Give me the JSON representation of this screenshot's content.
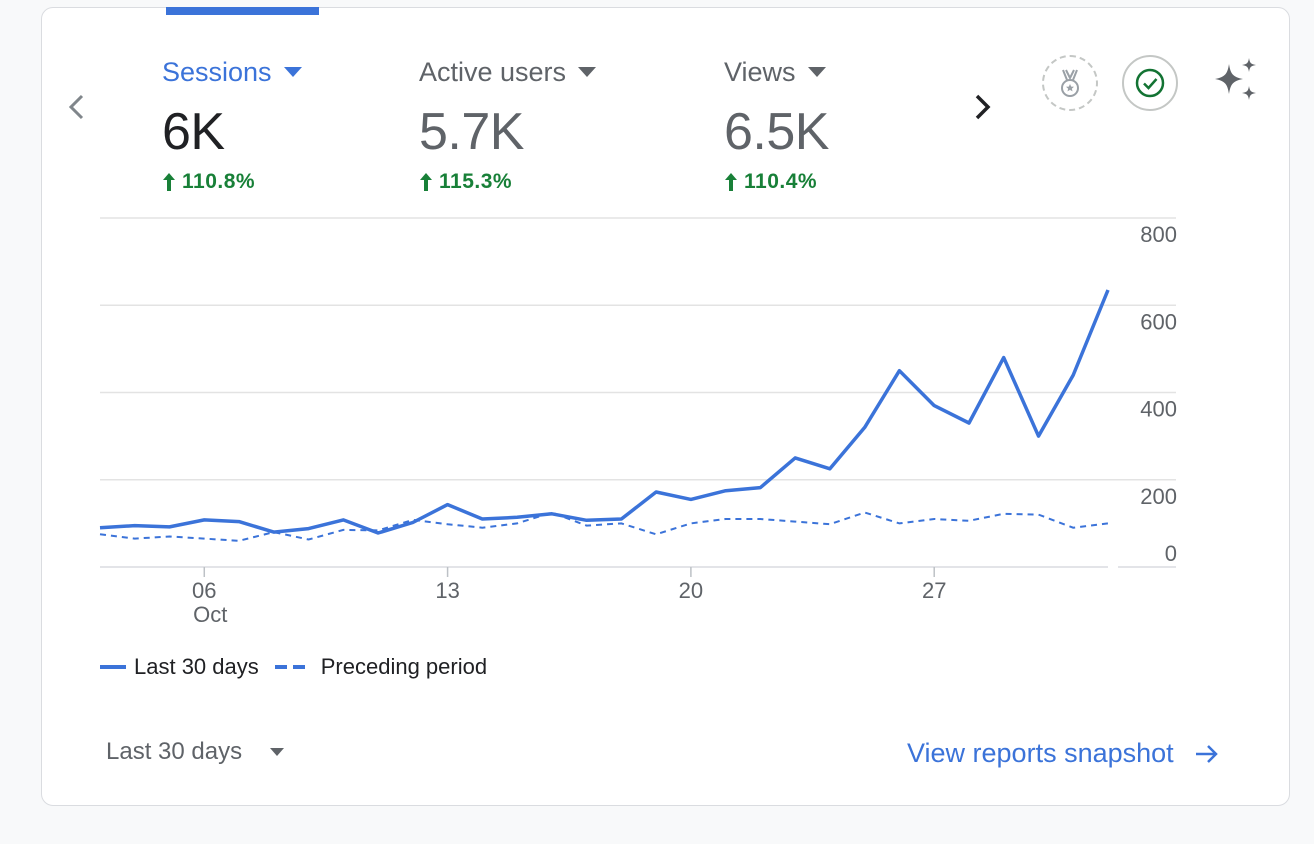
{
  "metrics": [
    {
      "label": "Sessions",
      "value": "6K",
      "change": "110.8%",
      "active": true
    },
    {
      "label": "Active users",
      "value": "5.7K",
      "change": "115.3%",
      "active": false
    },
    {
      "label": "Views",
      "value": "6.5K",
      "change": "110.4%",
      "active": false
    }
  ],
  "icons": {
    "prev": "chevron-left-icon",
    "next": "chevron-right-icon",
    "medal": "medal-icon",
    "check": "check-circle-icon",
    "sparkle": "sparkle-icon",
    "change": "arrow-up-icon",
    "link": "arrow-right-icon"
  },
  "colors": {
    "accent": "#3b73d9",
    "positive": "#188038"
  },
  "chart_data": {
    "type": "line",
    "x": [
      "Oct 3",
      "Oct 4",
      "Oct 5",
      "Oct 6",
      "Oct 7",
      "Oct 8",
      "Oct 9",
      "Oct 10",
      "Oct 11",
      "Oct 12",
      "Oct 13",
      "Oct 14",
      "Oct 15",
      "Oct 16",
      "Oct 17",
      "Oct 18",
      "Oct 19",
      "Oct 20",
      "Oct 21",
      "Oct 22",
      "Oct 23",
      "Oct 24",
      "Oct 25",
      "Oct 26",
      "Oct 27",
      "Oct 28",
      "Oct 29",
      "Oct 30",
      "Oct 31",
      "Nov 1"
    ],
    "x_tick_labels": [
      {
        "index": 3,
        "label": "06",
        "sublabel": "Oct"
      },
      {
        "index": 10,
        "label": "13",
        "sublabel": ""
      },
      {
        "index": 17,
        "label": "20",
        "sublabel": ""
      },
      {
        "index": 24,
        "label": "27",
        "sublabel": ""
      }
    ],
    "ylim": [
      0,
      800
    ],
    "y_ticks": [
      0,
      200,
      400,
      600,
      800
    ],
    "y_axis_side": "right",
    "grid": true,
    "legend_position": "bottom-left",
    "series": [
      {
        "name": "Last 30 days",
        "style": "solid",
        "values": [
          90,
          95,
          92,
          108,
          104,
          80,
          88,
          108,
          78,
          102,
          143,
          110,
          114,
          122,
          107,
          110,
          172,
          155,
          175,
          182,
          250,
          225,
          320,
          450,
          370,
          330,
          480,
          300,
          440,
          635
        ]
      },
      {
        "name": "Preceding period",
        "style": "dashed",
        "values": [
          75,
          65,
          70,
          65,
          60,
          80,
          63,
          85,
          84,
          108,
          98,
          90,
          100,
          125,
          95,
          100,
          75,
          100,
          110,
          110,
          104,
          98,
          125,
          100,
          110,
          106,
          122,
          120,
          90,
          100
        ]
      }
    ]
  },
  "footer": {
    "range_label": "Last 30 days",
    "link_label": "View reports snapshot"
  }
}
